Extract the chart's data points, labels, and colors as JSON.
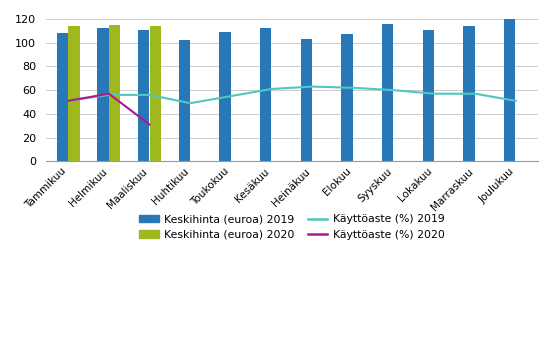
{
  "months": [
    "Tammikuu",
    "Helmikuu",
    "Maaliskuu",
    "Huhtikuu",
    "Toukokuu",
    "Kesäkuu",
    "Heinäkuu",
    "Elokuu",
    "Syyskuu",
    "Lokakuu",
    "Marraskuu",
    "Joulukuu"
  ],
  "keskihinta_2019": [
    108,
    112,
    111,
    102,
    109,
    112,
    103,
    107,
    116,
    111,
    114,
    120
  ],
  "keskihinta_2020": [
    114,
    115,
    114,
    null,
    null,
    null,
    null,
    null,
    null,
    null,
    null,
    null
  ],
  "kayttoaste_2019": [
    51,
    56,
    56,
    49,
    55,
    61,
    63,
    62,
    60,
    57,
    57,
    51
  ],
  "kayttoaste_2020": [
    51,
    57,
    31,
    null,
    null,
    null,
    null,
    null,
    null,
    null,
    null,
    null
  ],
  "bar_color_2019": "#2878B8",
  "bar_color_2020": "#A0B820",
  "line_color_2019": "#50C8C0",
  "line_color_2020": "#B01890",
  "ylim": [
    0,
    120
  ],
  "yticks": [
    0,
    20,
    40,
    60,
    80,
    100,
    120
  ],
  "legend_labels": [
    "Keskihinta (euroa) 2019",
    "Keskihinta (euroa) 2020",
    "Käyttöaste (%) 2019",
    "Käyttöaste (%) 2020"
  ],
  "background_color": "#ffffff"
}
